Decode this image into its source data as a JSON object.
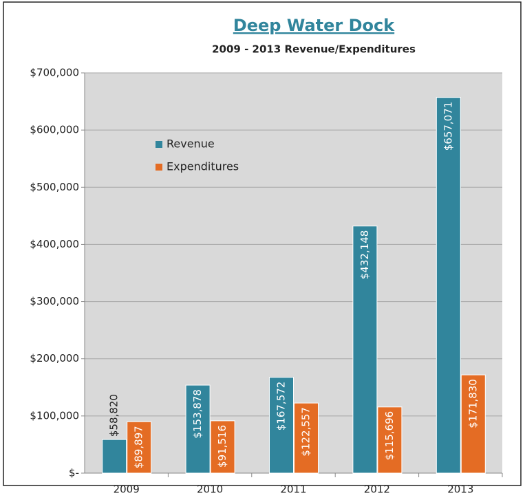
{
  "chart_data": {
    "type": "bar",
    "title": "Deep Water Dock",
    "subtitle": "2009 - 2013 Revenue/Expenditures",
    "categories": [
      "2009",
      "2010",
      "2011",
      "2012",
      "2013"
    ],
    "series": [
      {
        "name": "Revenue",
        "color": "#31859c",
        "values": [
          58820,
          153878,
          167572,
          432148,
          657071
        ],
        "value_labels": [
          "$58,820",
          "$153,878",
          "$167,572",
          "$432,148",
          "$657,071"
        ]
      },
      {
        "name": "Expenditures",
        "color": "#e46c24",
        "values": [
          89897,
          91516,
          122557,
          115696,
          171830
        ],
        "value_labels": [
          "$89,897",
          "$91,516",
          "$122,557",
          "$115,696",
          "$171,830"
        ]
      }
    ],
    "ylim": [
      0,
      700000
    ],
    "yticks": [
      {
        "value": 0,
        "label": "$-"
      },
      {
        "value": 100000,
        "label": "$100,000"
      },
      {
        "value": 200000,
        "label": "$200,000"
      },
      {
        "value": 300000,
        "label": "$300,000"
      },
      {
        "value": 400000,
        "label": "$400,000"
      },
      {
        "value": 500000,
        "label": "$500,000"
      },
      {
        "value": 600000,
        "label": "$600,000"
      },
      {
        "value": 700000,
        "label": "$700,000"
      }
    ],
    "grid": true,
    "legend": "upper left"
  }
}
